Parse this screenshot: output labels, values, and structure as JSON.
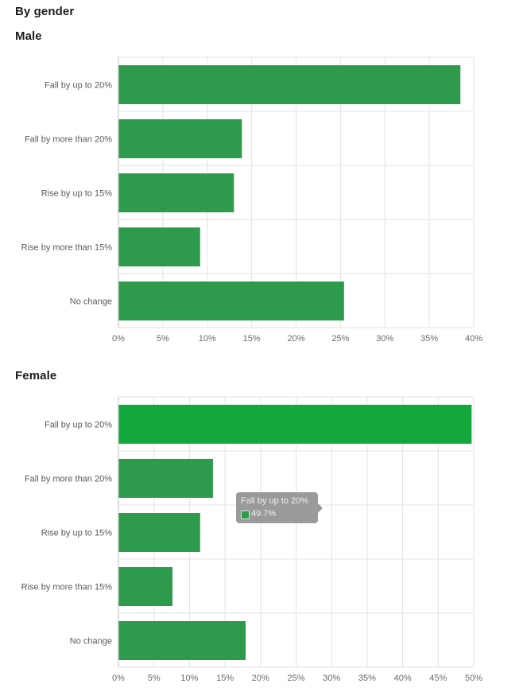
{
  "page": {
    "section_title": "By gender"
  },
  "chart_data": [
    {
      "type": "bar",
      "orientation": "horizontal",
      "title": "Male",
      "categories": [
        "Fall by up to 20%",
        "Fall by more than 20%",
        "Rise by up to 15%",
        "Rise by more than 15%",
        "No change"
      ],
      "values": [
        38.5,
        13.9,
        13.0,
        9.2,
        25.4
      ],
      "xlim": [
        0,
        40
      ],
      "xticks": [
        0,
        5,
        10,
        15,
        20,
        25,
        30,
        35,
        40
      ],
      "tick_suffix": "%",
      "grid": true,
      "colors": {
        "bar": "#2e9a4c",
        "highlight": "#12a83b"
      }
    },
    {
      "type": "bar",
      "orientation": "horizontal",
      "title": "Female",
      "categories": [
        "Fall by up to 20%",
        "Fall by more than 20%",
        "Rise by up to 15%",
        "Rise by more than 15%",
        "No change"
      ],
      "values": [
        49.7,
        13.3,
        11.5,
        7.6,
        17.9
      ],
      "highlighted_index": 0,
      "xlim": [
        0,
        50
      ],
      "xticks": [
        0,
        5,
        10,
        15,
        20,
        25,
        30,
        35,
        40,
        45,
        50
      ],
      "tick_suffix": "%",
      "grid": true,
      "colors": {
        "bar": "#2e9a4c",
        "highlight": "#12a83b"
      },
      "tooltip": {
        "category": "Fall by up to 20%",
        "value": "49.7%"
      }
    }
  ]
}
